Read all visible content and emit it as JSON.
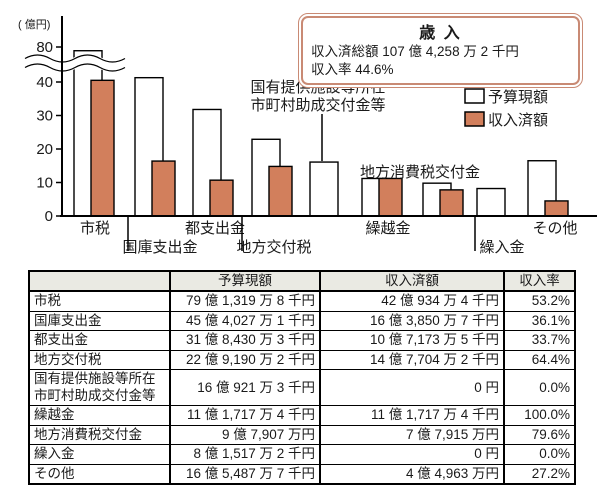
{
  "summary_box": {
    "title": "歳 入",
    "total_label": "収入済総額",
    "total_value": "107 億 4,258 万 2 千円",
    "rate_label": "収入率",
    "rate_value": "44.6%"
  },
  "chart_data": {
    "type": "bar",
    "title": "歳入",
    "unit_label": "( 億円)",
    "ylabel": "億円",
    "categories": [
      "市税",
      "国庫支出金",
      "都支出金",
      "地方交付税",
      "国有提供施設等所在市町村助成交付金等",
      "繰越金",
      "地方消費税交付金",
      "繰入金",
      "その他"
    ],
    "series": [
      {
        "name": "予算現額",
        "color": "#ffffff",
        "values": [
          79.1,
          45.4,
          31.8,
          22.9,
          16.1,
          11.2,
          9.8,
          8.2,
          16.5
        ]
      },
      {
        "name": "収入済額",
        "color": "#d27f5c",
        "values": [
          42.1,
          16.4,
          10.7,
          14.8,
          0,
          11.2,
          7.8,
          0,
          4.5
        ]
      }
    ],
    "yticks": [
      0,
      10,
      20,
      30,
      40,
      80
    ],
    "axis_break": true,
    "axis_break_between": [
      45,
      75
    ],
    "legend_position": "top-right",
    "annotations": [
      {
        "text": "国有提供施設等所在\n市町村助成交付金等",
        "target_category": "国有提供施設等所在市町村助成交付金等"
      },
      {
        "text": "地方消費税交付金",
        "target_category": "地方消費税交付金"
      }
    ]
  },
  "table": {
    "columns": [
      "",
      "予算現額",
      "収入済額",
      "収入率"
    ],
    "rows": [
      {
        "label": "市税",
        "budget": "79 億 1,319 万 8 千円",
        "received": "42 億 934 万 4 千円",
        "rate": "53.2%"
      },
      {
        "label": "国庫支出金",
        "budget": "45 億 4,027 万 1 千円",
        "received": "16 億 3,850 万 7 千円",
        "rate": "36.1%"
      },
      {
        "label": "都支出金",
        "budget": "31 億 8,430 万 3 千円",
        "received": "10 億 7,173 万 5 千円",
        "rate": "33.7%"
      },
      {
        "label": "地方交付税",
        "budget": "22 億 9,190 万 2 千円",
        "received": "14 億 7,704 万 2 千円",
        "rate": "64.4%"
      },
      {
        "label": "国有提供施設等所在\n市町村助成交付金等",
        "budget": "16 億 921 万 3 千円",
        "received": "0 円",
        "rate": "0.0%"
      },
      {
        "label": "繰越金",
        "budget": "11 億 1,717 万 4 千円",
        "received": "11 億 1,717 万 4 千円",
        "rate": "100.0%"
      },
      {
        "label": "地方消費税交付金",
        "budget": "9 億 7,907 万円",
        "received": "7 億 7,915 万円",
        "rate": "79.6%"
      },
      {
        "label": "繰入金",
        "budget": "8 億 1,517 万 2 千円",
        "received": "0 円",
        "rate": "0.0%"
      },
      {
        "label": "その他",
        "budget": "16 億 5,487 万 7 千円",
        "received": "4 億 4,963 万円",
        "rate": "27.2%"
      }
    ]
  },
  "colors": {
    "bar_received": "#d27f5c",
    "bar_budget": "#ffffff",
    "summary_border": "#c98a74",
    "table_header_bg": "#eaeae3",
    "axis": "#000000"
  }
}
